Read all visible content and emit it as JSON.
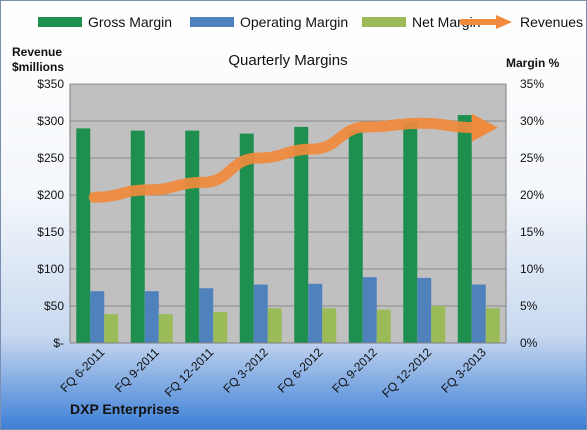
{
  "footer": "DXP Enterprises",
  "chart_data": {
    "type": "bar",
    "title": "Quarterly Margins",
    "ylabel_left": [
      "Revenue",
      "$millions"
    ],
    "ylabel_right": "Margin %",
    "categories": [
      "FQ 6-2011",
      "FQ 9-2011",
      "FQ 12-2011",
      "FQ 3-2012",
      "FQ 6-2012",
      "FQ 9-2012",
      "FQ 12-2012",
      "FQ 3-2013"
    ],
    "series": [
      {
        "name": "Gross Margin",
        "axis": "right",
        "type": "bar",
        "color": "#1e8f4e",
        "values": [
          29.0,
          28.7,
          28.7,
          28.3,
          29.2,
          28.7,
          29.8,
          30.8
        ]
      },
      {
        "name": "Operating Margin",
        "axis": "right",
        "type": "bar",
        "color": "#4f81bd",
        "values": [
          7.0,
          7.0,
          7.4,
          7.9,
          8.0,
          8.9,
          8.8,
          7.9
        ]
      },
      {
        "name": "Net Margin",
        "axis": "right",
        "type": "bar",
        "color": "#9bbb59",
        "values": [
          3.9,
          3.9,
          4.2,
          4.7,
          4.7,
          4.5,
          5.0,
          4.7
        ]
      },
      {
        "name": "Revenues",
        "axis": "left",
        "type": "arrow-line",
        "color": "#f08a3c",
        "values": [
          197,
          207,
          217,
          250,
          262,
          292,
          297,
          291
        ]
      }
    ],
    "left_axis": {
      "ylim": [
        0,
        350
      ],
      "ticks": [
        0,
        50,
        100,
        150,
        200,
        250,
        300,
        350
      ],
      "tick_labels": [
        "$-",
        "$50",
        "$100",
        "$150",
        "$200",
        "$250",
        "$300",
        "$350"
      ]
    },
    "right_axis": {
      "ylim": [
        0,
        35
      ],
      "ticks": [
        0,
        5,
        10,
        15,
        20,
        25,
        30,
        35
      ],
      "tick_labels": [
        "0%",
        "5%",
        "10%",
        "15%",
        "20%",
        "25%",
        "30%",
        "35%"
      ]
    },
    "grid": true,
    "legend_position": "top"
  }
}
